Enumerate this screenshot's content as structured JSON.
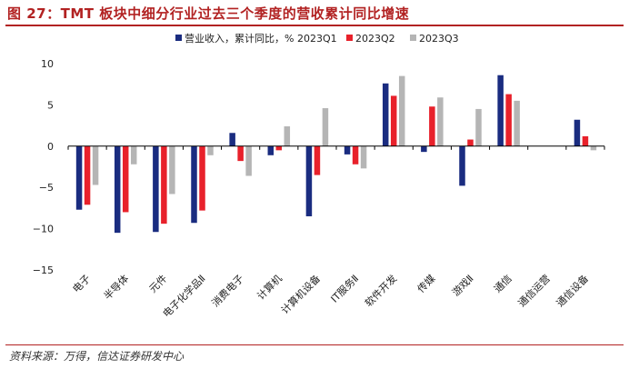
{
  "figure": {
    "title": "图 27：TMT 板块中细分行业过去三个季度的营收累计同比增速",
    "source": "资料来源：万得，信达证券研发中心"
  },
  "colors": {
    "series_1": "#1a2c80",
    "series_2": "#e8212b",
    "series_3": "#b5b5b5",
    "title": "#b22222",
    "axis": "#000000"
  },
  "chart_data": {
    "type": "bar",
    "title": "TMT 板块中细分行业过去三个季度的营收累计同比增速",
    "xlabel": "",
    "ylabel": "",
    "ylim": [
      -15,
      10
    ],
    "yticks": [
      10,
      5,
      0,
      -5,
      -10,
      -15
    ],
    "ytick_labels": [
      "10",
      "5",
      "0",
      "−5",
      "−10",
      "−15"
    ],
    "legend_position": "top-center",
    "categories": [
      "电子",
      "半导体",
      "元件",
      "电子化学品Ⅱ",
      "消费电子",
      "计算机",
      "计算机设备",
      "IT服务Ⅱ",
      "软件开发",
      "传媒",
      "游戏Ⅱ",
      "通信",
      "通信运营",
      "通信设备"
    ],
    "series": [
      {
        "name": "营业收入，累计同比，% 2023Q1",
        "values": [
          -7.7,
          -10.5,
          -10.4,
          -9.3,
          1.6,
          -1.1,
          -8.5,
          -1.0,
          7.6,
          -0.7,
          -4.8,
          8.6,
          null,
          3.2
        ]
      },
      {
        "name": "2023Q2",
        "values": [
          -7.1,
          -8.0,
          -9.4,
          -7.8,
          -1.8,
          -0.5,
          -3.5,
          -2.2,
          6.1,
          4.8,
          0.8,
          6.3,
          null,
          1.2
        ]
      },
      {
        "name": "2023Q3",
        "values": [
          -4.7,
          -2.2,
          -5.8,
          -1.1,
          -3.6,
          2.4,
          4.6,
          -2.7,
          8.5,
          5.9,
          4.5,
          5.5,
          null,
          -0.5
        ]
      }
    ]
  }
}
